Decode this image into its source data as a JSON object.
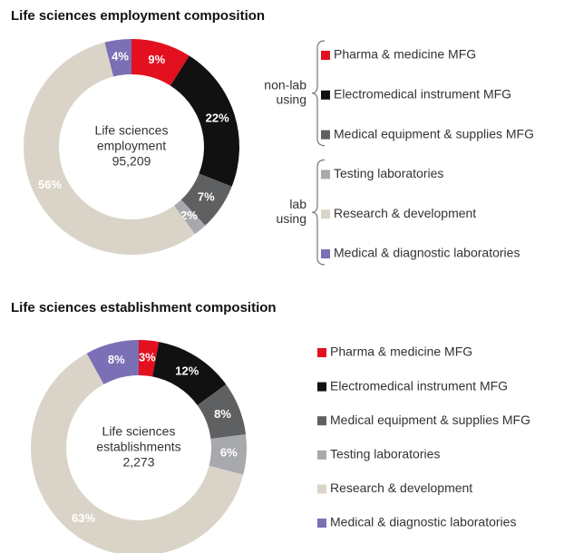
{
  "chart_data": [
    {
      "type": "pie",
      "title": "Life sciences employment composition",
      "center_text": [
        "Life sciences",
        "employment",
        "95,209"
      ],
      "groups": [
        {
          "label": [
            "non-lab",
            "using"
          ],
          "categories": [
            "Pharma & medicine MFG",
            "Electromedical instrument MFG",
            "Medical equipment & supplies MFG"
          ]
        },
        {
          "label": [
            "lab",
            "using"
          ],
          "categories": [
            "Testing laboratories",
            "Research & development",
            "Medical & diagnostic laboratories"
          ]
        }
      ],
      "values": [
        9,
        22,
        7,
        2,
        56,
        4
      ],
      "value_labels": [
        "9%",
        "22%",
        "7%",
        "2%",
        "56%",
        "4%"
      ],
      "colors": [
        "#e3101f",
        "#111111",
        "#5f6062",
        "#a7a9ac",
        "#d9d4c7",
        "#7b6fb5"
      ]
    },
    {
      "type": "pie",
      "title": "Life sciences establishment composition",
      "center_text": [
        "Life sciences",
        "establishments",
        "2,273"
      ],
      "categories": [
        "Pharma & medicine MFG",
        "Electromedical instrument MFG",
        "Medical equipment & supplies MFG",
        "Testing laboratories",
        "Research & development",
        "Medical & diagnostic laboratories"
      ],
      "values": [
        3,
        12,
        8,
        6,
        63,
        8
      ],
      "value_labels": [
        "3%",
        "12%",
        "8%",
        "6%",
        "63%",
        "8%"
      ],
      "colors": [
        "#e3101f",
        "#111111",
        "#5f6062",
        "#a7a9ac",
        "#d9d4c7",
        "#7b6fb5"
      ]
    }
  ]
}
